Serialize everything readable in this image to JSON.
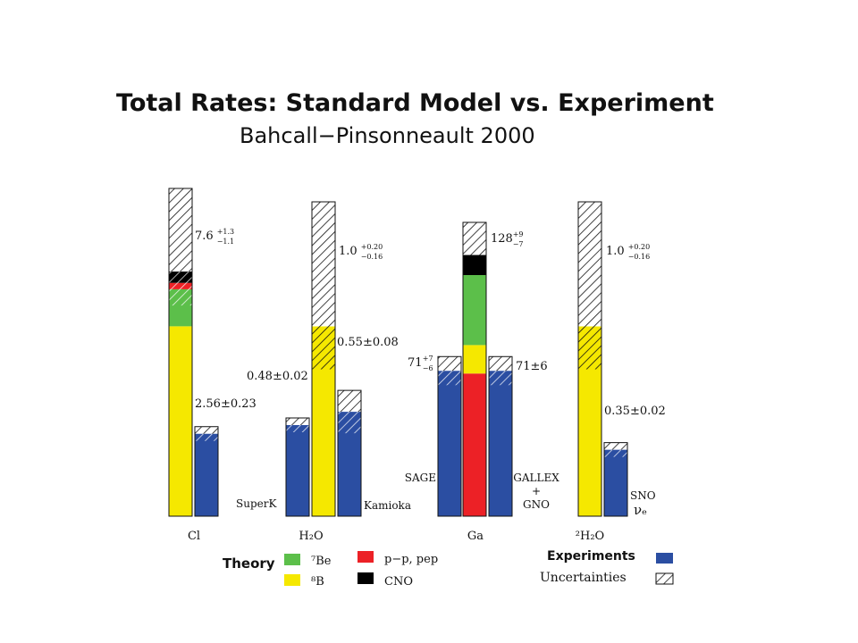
{
  "colors": {
    "be7": "#5cbf4a",
    "b8": "#f5e800",
    "pp": "#ec2126",
    "cno": "#000000",
    "experiment": "#2b4ea2",
    "hatch": "#111111"
  },
  "chart_data": {
    "type": "bar",
    "title": "Total Rates: Standard Model vs. Experiment",
    "subtitle": "Bahcall−Pinsonneault 2000",
    "groups": [
      {
        "label": "Cl",
        "theory": {
          "label": "7.6",
          "sup": "+1.3",
          "sub": "−1.1",
          "components": [
            {
              "name": "8B",
              "value": 5.9
            },
            {
              "name": "7Be",
              "value": 1.15
            },
            {
              "name": "pp",
              "value": 0.2
            },
            {
              "name": "CNO",
              "value": 0.35
            }
          ]
        },
        "experiments": [
          {
            "name": "",
            "text": "2.56±0.23",
            "value": 2.56
          }
        ]
      },
      {
        "label": "H₂O",
        "theory": {
          "label": "1.0",
          "sup": "+0.20",
          "sub": "−0.16",
          "components": [
            {
              "name": "8B",
              "value": 1.0
            }
          ]
        },
        "experiments": [
          {
            "name": "SuperK",
            "text": "0.48±0.02",
            "value": 0.48
          },
          {
            "name": "Kamioka",
            "text": "0.55±0.08",
            "value": 0.55
          }
        ]
      },
      {
        "label": "Ga",
        "theory": {
          "label": "128",
          "sup": "+9",
          "sub": "−7",
          "components": [
            {
              "name": "pp",
              "value": 69.7
            },
            {
              "name": "8B",
              "value": 13.9
            },
            {
              "name": "7Be",
              "value": 34.2
            },
            {
              "name": "CNO",
              "value": 9.8
            }
          ]
        },
        "experiments": [
          {
            "name": "SAGE",
            "text": "71",
            "sup": "+7",
            "sub": "−6",
            "value": 71
          },
          {
            "name": "GALLEX + GNO",
            "text": "71±6",
            "value": 71
          }
        ]
      },
      {
        "label": "²H₂O",
        "theory": {
          "label": "1.0",
          "sup": "+0.20",
          "sub": "−0.16",
          "components": [
            {
              "name": "8B",
              "value": 1.0
            }
          ]
        },
        "experiments": [
          {
            "name": "SNO νₑ",
            "text": "0.35±0.02",
            "value": 0.35
          }
        ]
      }
    ],
    "legend": {
      "theory_title": "Theory",
      "items": [
        {
          "key": "be7",
          "label": "⁷Be"
        },
        {
          "key": "b8",
          "label": "⁸B"
        },
        {
          "key": "pp",
          "label": "p−p, pep"
        },
        {
          "key": "cno",
          "label": "CNO"
        }
      ],
      "experiments_label": "Experiments",
      "uncertainties_label": "Uncertainties"
    }
  }
}
